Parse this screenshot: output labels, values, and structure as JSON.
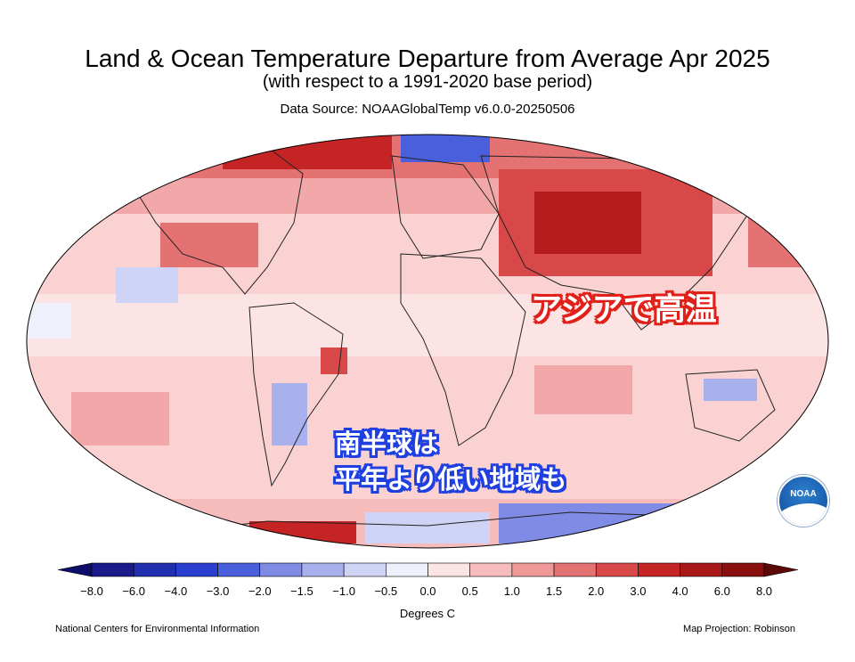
{
  "title": "Land & Ocean Temperature Departure from Average Apr 2025",
  "subtitle": "(with respect to a 1991-2020 base period)",
  "source": "Data Source: NOAAGlobalTemp v6.0.0-20250506",
  "callouts": {
    "asia": "アジアで高温",
    "south_line1": "南半球は",
    "south_line2": "平年より低い地域も"
  },
  "logo_text": "NOAA",
  "colorbar": {
    "ticks": [
      "−8.0",
      "−6.0",
      "−4.0",
      "−3.0",
      "−2.0",
      "−1.5",
      "−1.0",
      "−0.5",
      "0.0",
      "0.5",
      "1.0",
      "1.5",
      "2.0",
      "3.0",
      "4.0",
      "6.0",
      "8.0"
    ],
    "colors": [
      "#1a1a8c",
      "#1f2fb0",
      "#2a3fd0",
      "#4a5fdc",
      "#7f8be4",
      "#a9b0ee",
      "#cfd3f6",
      "#eef0fb",
      "#fde4e4",
      "#f6bcbc",
      "#ee9898",
      "#e47272",
      "#d84848",
      "#c42424",
      "#a81818",
      "#8a1010"
    ],
    "unit_label": "Degrees C"
  },
  "footer": {
    "left": "National Centers for Environmental Information",
    "right": "Map Projection: Robinson"
  },
  "map_regions": [
    {
      "region": "Arctic / northern Eurasia",
      "anomaly": 3.0
    },
    {
      "region": "Central Asia",
      "anomaly": 4.0
    },
    {
      "region": "Greenland Sea",
      "anomaly": -2.0
    },
    {
      "region": "South America interior",
      "anomaly": -1.0
    },
    {
      "region": "Australia interior",
      "anomaly": -1.5
    },
    {
      "region": "Antarctic coast (Indian sector)",
      "anomaly": -3.0
    },
    {
      "region": "Antarctic coast (Atlantic sector)",
      "anomaly": 3.0
    },
    {
      "region": "Eastern Brazil",
      "anomaly": 3.0
    }
  ]
}
